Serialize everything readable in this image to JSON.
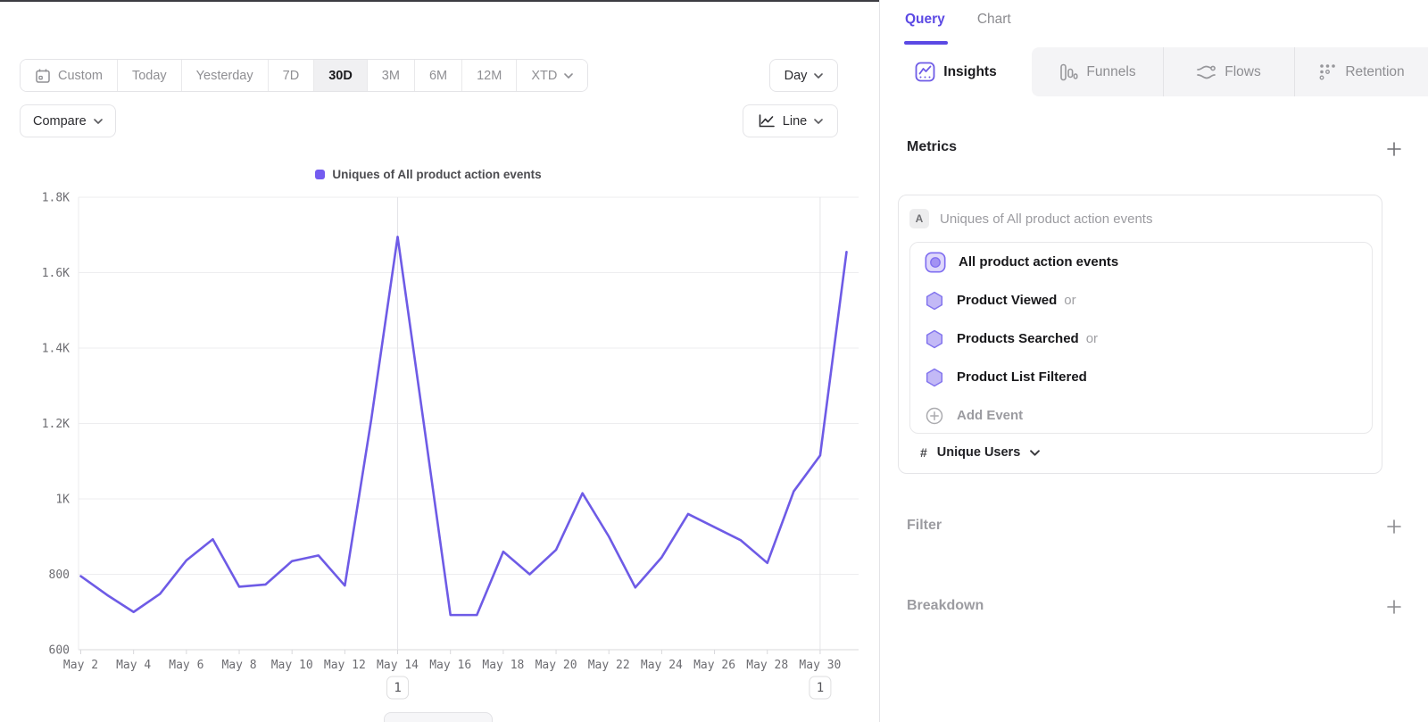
{
  "colors": {
    "accent": "#5b49e4",
    "line": "#6e5be6",
    "legend_swatch": "#745cf0"
  },
  "toolbar": {
    "ranges": [
      {
        "label": "Custom"
      },
      {
        "label": "Today"
      },
      {
        "label": "Yesterday"
      },
      {
        "label": "7D"
      },
      {
        "label": "30D",
        "active": true
      },
      {
        "label": "3M"
      },
      {
        "label": "6M"
      },
      {
        "label": "12M"
      },
      {
        "label": "XTD"
      }
    ],
    "granularity": "Day",
    "compare_label": "Compare",
    "chart_type_label": "Line"
  },
  "chart_data": {
    "type": "line",
    "categories": [
      "May 2",
      "May 3",
      "May 4",
      "May 5",
      "May 6",
      "May 7",
      "May 8",
      "May 9",
      "May 10",
      "May 11",
      "May 12",
      "May 13",
      "May 14",
      "May 15",
      "May 16",
      "May 17",
      "May 18",
      "May 19",
      "May 20",
      "May 21",
      "May 22",
      "May 23",
      "May 24",
      "May 25",
      "May 26",
      "May 27",
      "May 28",
      "May 29",
      "May 30",
      "May 31"
    ],
    "tick_step": 2,
    "series": [
      {
        "name": "Uniques of All product action events",
        "color": "#6e5be6",
        "values": [
          795,
          745,
          700,
          748,
          837,
          893,
          767,
          773,
          835,
          850,
          770,
          1210,
          1695,
          1195,
          692,
          692,
          860,
          800,
          865,
          1015,
          900,
          765,
          845,
          960,
          925,
          890,
          830,
          1020,
          1115,
          1655
        ]
      }
    ],
    "ylim": [
      600,
      1800
    ],
    "y_ticks": [
      600,
      800,
      1000,
      1200,
      1400,
      1600,
      1800
    ],
    "y_tick_labels": [
      "600",
      "800",
      "1K",
      "1.2K",
      "1.4K",
      "1.6K",
      "1.8K"
    ],
    "grid": true,
    "legend_position": "top-center",
    "annotations": [
      {
        "index": 12,
        "label": "1"
      },
      {
        "index": 28,
        "label": "1"
      }
    ]
  },
  "panel": {
    "top_tabs": {
      "query": "Query",
      "chart": "Chart"
    },
    "report_tabs": [
      {
        "label": "Insights",
        "active": true
      },
      {
        "label": "Funnels"
      },
      {
        "label": "Flows"
      },
      {
        "label": "Retention"
      }
    ],
    "metrics": {
      "title": "Metrics",
      "metric_letter": "A",
      "metric_summary": "Uniques of All product action events",
      "events": [
        {
          "name": "All product action events"
        },
        {
          "name": "Product Viewed",
          "suffix": "or"
        },
        {
          "name": "Products Searched",
          "suffix": "or"
        },
        {
          "name": "Product List Filtered"
        },
        {
          "name": "Add Event"
        }
      ],
      "aggregation": {
        "prefix": "#",
        "label": "Unique Users"
      }
    },
    "filter": {
      "title": "Filter"
    },
    "breakdown": {
      "title": "Breakdown"
    }
  }
}
